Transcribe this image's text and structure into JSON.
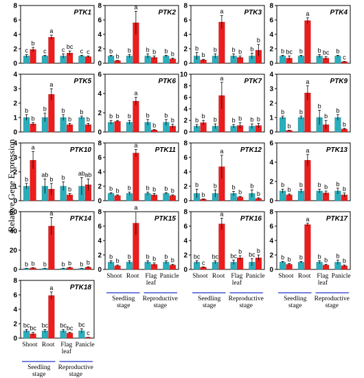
{
  "figure": {
    "ylabel": "Relative Gene Expression",
    "colors": {
      "control": "#2aaebc",
      "treated": "#ee1c1c",
      "axis_group_line": "#2233cc"
    },
    "categories": [
      "Shoot",
      "Root",
      "Flag\nleaf",
      "Panicle"
    ],
    "stages": [
      "Seedling\nstage",
      "Reproductive\nstage"
    ]
  },
  "chart_data": [
    {
      "type": "bar",
      "title": "PTK1",
      "ylim": [
        0,
        8
      ],
      "yticks": [
        0,
        2,
        4,
        6,
        8
      ],
      "categories": [
        "Shoot",
        "Root",
        "Flag leaf",
        "Panicle"
      ],
      "series": [
        {
          "values": [
            1.0,
            1.0,
            1.0,
            1.0
          ],
          "err": [
            0.2,
            0.1,
            0.3,
            0.1
          ]
        },
        {
          "values": [
            1.9,
            3.6,
            1.4,
            0.9
          ],
          "err": [
            0.3,
            0.3,
            0.3,
            0.1
          ]
        }
      ],
      "letters": [
        [
          "c",
          "b"
        ],
        [
          "c",
          "a"
        ],
        [
          "c",
          "bc"
        ],
        [
          "c",
          "c"
        ]
      ]
    },
    {
      "type": "bar",
      "title": "PTK2",
      "ylim": [
        0,
        8
      ],
      "yticks": [
        0,
        2,
        4,
        6,
        8
      ],
      "categories": [
        "Shoot",
        "Root",
        "Flag leaf",
        "Panicle"
      ],
      "series": [
        {
          "values": [
            1.0,
            1.0,
            1.0,
            1.0
          ],
          "err": [
            0.1,
            0.2,
            0.3,
            0.1
          ]
        },
        {
          "values": [
            0.35,
            5.6,
            0.8,
            0.6
          ],
          "err": [
            0.05,
            1.6,
            0.2,
            0.1
          ]
        }
      ],
      "letters": [
        [
          "b",
          "b"
        ],
        [
          "b",
          "a"
        ],
        [
          "b",
          "b"
        ],
        [
          "b",
          "b"
        ]
      ]
    },
    {
      "type": "bar",
      "title": "PTK3",
      "ylim": [
        0,
        8
      ],
      "yticks": [
        0,
        2,
        4,
        6,
        8
      ],
      "categories": [
        "Shoot",
        "Root",
        "Flag leaf",
        "Panicle"
      ],
      "series": [
        {
          "values": [
            1.0,
            1.0,
            1.0,
            1.0
          ],
          "err": [
            0.5,
            0.3,
            0.3,
            0.4
          ]
        },
        {
          "values": [
            0.45,
            5.7,
            0.8,
            1.8
          ],
          "err": [
            0.1,
            0.9,
            0.2,
            0.8
          ]
        }
      ],
      "letters": [
        [
          "b",
          "b"
        ],
        [
          "b",
          "a"
        ],
        [
          "b",
          "b"
        ],
        [
          "b",
          "b"
        ]
      ]
    },
    {
      "type": "bar",
      "title": "PTK4",
      "ylim": [
        0,
        8
      ],
      "yticks": [
        0,
        2,
        4,
        6,
        8
      ],
      "categories": [
        "Shoot",
        "Root",
        "Flag leaf",
        "Panicle"
      ],
      "series": [
        {
          "values": [
            1.0,
            1.0,
            1.0,
            1.0
          ],
          "err": [
            0.1,
            0.1,
            0.2,
            0.1
          ]
        },
        {
          "values": [
            0.7,
            5.9,
            0.7,
            0.2
          ],
          "err": [
            0.3,
            0.4,
            0.2,
            0.05
          ]
        }
      ],
      "letters": [
        [
          "b",
          "bc"
        ],
        [
          "b",
          "a"
        ],
        [
          "b",
          "bc"
        ],
        [
          "b",
          "c"
        ]
      ]
    },
    {
      "type": "bar",
      "title": "PTK5",
      "ylim": [
        0,
        4
      ],
      "yticks": [
        0,
        1,
        2,
        3,
        4
      ],
      "categories": [
        "Shoot",
        "Root",
        "Flag leaf",
        "Panicle"
      ],
      "series": [
        {
          "values": [
            1.0,
            1.0,
            1.0,
            1.0
          ],
          "err": [
            0.2,
            0.3,
            0.2,
            0.1
          ]
        },
        {
          "values": [
            0.55,
            2.6,
            0.5,
            0.5
          ],
          "err": [
            0.1,
            0.4,
            0.1,
            0.1
          ]
        }
      ],
      "letters": [
        [
          "b",
          "b"
        ],
        [
          "b",
          "a"
        ],
        [
          "b",
          "b"
        ],
        [
          "b",
          "b"
        ]
      ]
    },
    {
      "type": "bar",
      "title": "PTK6",
      "ylim": [
        0,
        6
      ],
      "yticks": [
        0,
        2,
        4,
        6
      ],
      "categories": [
        "Shoot",
        "Root",
        "Flag leaf",
        "Panicle"
      ],
      "series": [
        {
          "values": [
            1.0,
            1.0,
            1.0,
            1.0
          ],
          "err": [
            0.2,
            0.2,
            0.3,
            0.3
          ]
        },
        {
          "values": [
            1.1,
            3.2,
            0.2,
            0.6
          ],
          "err": [
            0.1,
            0.4,
            0.05,
            0.2
          ]
        }
      ],
      "letters": [
        [
          "b",
          "b"
        ],
        [
          "b",
          "a"
        ],
        [
          "b",
          "b"
        ],
        [
          "b",
          "b"
        ]
      ]
    },
    {
      "type": "bar",
      "title": "PTK7",
      "ylim": [
        0,
        10
      ],
      "yticks": [
        0,
        2,
        4,
        6,
        8,
        10
      ],
      "categories": [
        "Shoot",
        "Root",
        "Flag leaf",
        "Panicle"
      ],
      "series": [
        {
          "values": [
            1.0,
            1.0,
            1.0,
            1.0
          ],
          "err": [
            0.3,
            0.4,
            0.3,
            0.4
          ]
        },
        {
          "values": [
            1.6,
            6.3,
            1.1,
            1.1
          ],
          "err": [
            0.4,
            2.3,
            0.5,
            0.4
          ]
        }
      ],
      "letters": [
        [
          "b",
          "b"
        ],
        [
          "b",
          "a"
        ],
        [
          "b",
          "b"
        ],
        [
          "b",
          "b"
        ]
      ]
    },
    {
      "type": "bar",
      "title": "PTK9",
      "ylim": [
        0,
        4
      ],
      "yticks": [
        0,
        1,
        2,
        3,
        4
      ],
      "categories": [
        "Shoot",
        "Root",
        "Flag leaf",
        "Panicle"
      ],
      "series": [
        {
          "values": [
            1.0,
            1.0,
            1.0,
            1.0
          ],
          "err": [
            0.1,
            0.1,
            0.5,
            0.2
          ]
        },
        {
          "values": [
            0.1,
            2.7,
            0.5,
            0.2
          ],
          "err": [
            0.02,
            0.5,
            0.3,
            0.05
          ]
        }
      ],
      "letters": [
        [
          "b",
          "b"
        ],
        [
          "b",
          "a"
        ],
        [
          "b",
          "b"
        ],
        [
          "b",
          "b"
        ]
      ]
    },
    {
      "type": "bar",
      "title": "PTK10",
      "ylim": [
        0,
        4
      ],
      "yticks": [
        0,
        1,
        2,
        3,
        4
      ],
      "categories": [
        "Shoot",
        "Root",
        "Flag leaf",
        "Panicle"
      ],
      "series": [
        {
          "values": [
            1.0,
            1.0,
            1.0,
            1.0
          ],
          "err": [
            0.2,
            0.5,
            0.3,
            0.6
          ]
        },
        {
          "values": [
            2.8,
            0.8,
            0.4,
            1.1
          ],
          "err": [
            0.6,
            0.4,
            0.1,
            0.4
          ]
        }
      ],
      "letters": [
        [
          "b",
          "a"
        ],
        [
          "ab",
          "b"
        ],
        [
          "b",
          "b"
        ],
        [
          "ab",
          "ab"
        ]
      ]
    },
    {
      "type": "bar",
      "title": "PTK11",
      "ylim": [
        0,
        8
      ],
      "yticks": [
        0,
        2,
        4,
        6,
        8
      ],
      "categories": [
        "Shoot",
        "Root",
        "Flag leaf",
        "Panicle"
      ],
      "series": [
        {
          "values": [
            1.0,
            1.0,
            1.0,
            1.0
          ],
          "err": [
            0.1,
            0.2,
            0.2,
            0.1
          ]
        },
        {
          "values": [
            0.7,
            6.6,
            0.8,
            0.7
          ],
          "err": [
            0.1,
            0.5,
            0.2,
            0.1
          ]
        }
      ],
      "letters": [
        [
          "b",
          "b"
        ],
        [
          "b",
          "a"
        ],
        [
          "b",
          "b"
        ],
        [
          "b",
          "b"
        ]
      ]
    },
    {
      "type": "bar",
      "title": "PTK12",
      "ylim": [
        0,
        8
      ],
      "yticks": [
        0,
        2,
        4,
        6,
        8
      ],
      "categories": [
        "Shoot",
        "Root",
        "Flag leaf",
        "Panicle"
      ],
      "series": [
        {
          "values": [
            1.0,
            1.0,
            1.0,
            1.0
          ],
          "err": [
            0.6,
            0.5,
            0.3,
            0.5
          ]
        },
        {
          "values": [
            0.2,
            4.7,
            0.5,
            0.3
          ],
          "err": [
            0.05,
            1.6,
            0.1,
            0.1
          ]
        }
      ],
      "letters": [
        [
          "b",
          "b"
        ],
        [
          "b",
          "a"
        ],
        [
          "b",
          "b"
        ],
        [
          "b",
          "b"
        ]
      ]
    },
    {
      "type": "bar",
      "title": "PTK13",
      "ylim": [
        0,
        6
      ],
      "yticks": [
        0,
        2,
        4,
        6
      ],
      "categories": [
        "Shoot",
        "Root",
        "Flag leaf",
        "Panicle"
      ],
      "series": [
        {
          "values": [
            1.0,
            1.0,
            1.0,
            1.0
          ],
          "err": [
            0.2,
            0.2,
            0.2,
            0.3
          ]
        },
        {
          "values": [
            0.6,
            4.2,
            0.8,
            0.6
          ],
          "err": [
            0.1,
            0.6,
            0.2,
            0.2
          ]
        }
      ],
      "letters": [
        [
          "b",
          "b"
        ],
        [
          "b",
          "a"
        ],
        [
          "b",
          "b"
        ],
        [
          "b",
          "b"
        ]
      ]
    },
    {
      "type": "bar",
      "title": "PTK14",
      "ylim": [
        0,
        60
      ],
      "yticks": [
        0,
        20,
        40,
        60
      ],
      "categories": [
        "Shoot",
        "Root",
        "Flag leaf",
        "Panicle"
      ],
      "series": [
        {
          "values": [
            1.0,
            1.0,
            1.0,
            1.0
          ],
          "err": [
            0.2,
            0.2,
            0.2,
            0.2
          ]
        },
        {
          "values": [
            1.5,
            45,
            1.8,
            2.2
          ],
          "err": [
            0.3,
            9,
            0.4,
            0.5
          ]
        }
      ],
      "letters": [
        [
          "b",
          "b"
        ],
        [
          "b",
          "a"
        ],
        [
          "b",
          "b"
        ],
        [
          "b",
          "b"
        ]
      ]
    },
    {
      "type": "bar",
      "title": "PTK15",
      "ylim": [
        0,
        8
      ],
      "yticks": [
        0,
        2,
        4,
        6,
        8
      ],
      "categories": [
        "Shoot",
        "Root",
        "Flag leaf",
        "Panicle"
      ],
      "series": [
        {
          "values": [
            1.0,
            1.0,
            1.0,
            1.0
          ],
          "err": [
            0.2,
            0.2,
            0.2,
            0.2
          ]
        },
        {
          "values": [
            0.5,
            6.4,
            0.7,
            0.6
          ],
          "err": [
            0.1,
            1.6,
            0.2,
            0.1
          ]
        }
      ],
      "letters": [
        [
          "b",
          "b"
        ],
        [
          "b",
          "a"
        ],
        [
          "b",
          "b"
        ],
        [
          "b",
          "b"
        ]
      ]
    },
    {
      "type": "bar",
      "title": "PTK16",
      "ylim": [
        0,
        8
      ],
      "yticks": [
        0,
        2,
        4,
        6,
        8
      ],
      "categories": [
        "Shoot",
        "Root",
        "Flag leaf",
        "Panicle"
      ],
      "series": [
        {
          "values": [
            1.0,
            1.0,
            1.0,
            1.0
          ],
          "err": [
            0.2,
            0.2,
            0.3,
            0.5
          ]
        },
        {
          "values": [
            0.3,
            6.3,
            1.6,
            1.6
          ],
          "err": [
            0.05,
            0.8,
            0.3,
            0.4
          ]
        }
      ],
      "letters": [
        [
          "bc",
          "c"
        ],
        [
          "bc",
          "a"
        ],
        [
          "bc",
          "b"
        ],
        [
          "bc",
          "b"
        ]
      ]
    },
    {
      "type": "bar",
      "title": "PTK17",
      "ylim": [
        0,
        8
      ],
      "yticks": [
        0,
        2,
        4,
        6,
        8
      ],
      "categories": [
        "Shoot",
        "Root",
        "Flag leaf",
        "Panicle"
      ],
      "series": [
        {
          "values": [
            1.0,
            1.0,
            1.0,
            1.0
          ],
          "err": [
            0.1,
            0.1,
            0.2,
            0.3
          ]
        },
        {
          "values": [
            0.7,
            6.2,
            0.6,
            0.5
          ],
          "err": [
            0.1,
            0.2,
            0.1,
            0.1
          ]
        }
      ],
      "letters": [
        [
          "b",
          "b"
        ],
        [
          "b",
          "a"
        ],
        [
          "b",
          "b"
        ],
        [
          "b",
          "b"
        ]
      ]
    },
    {
      "type": "bar",
      "title": "PTK18",
      "ylim": [
        0,
        8
      ],
      "yticks": [
        0,
        2,
        4,
        6,
        8
      ],
      "categories": [
        "Shoot",
        "Root",
        "Flag leaf",
        "Panicle"
      ],
      "series": [
        {
          "values": [
            1.0,
            1.0,
            1.0,
            1.0
          ],
          "err": [
            0.2,
            0.2,
            0.2,
            0.3
          ]
        },
        {
          "values": [
            0.6,
            5.9,
            0.7,
            0.1
          ],
          "err": [
            0.2,
            0.5,
            0.1,
            0.02
          ]
        }
      ],
      "letters": [
        [
          "bc",
          "bc"
        ],
        [
          "bc",
          "a"
        ],
        [
          "bc",
          "bc"
        ],
        [
          "bc",
          "c"
        ]
      ]
    }
  ]
}
